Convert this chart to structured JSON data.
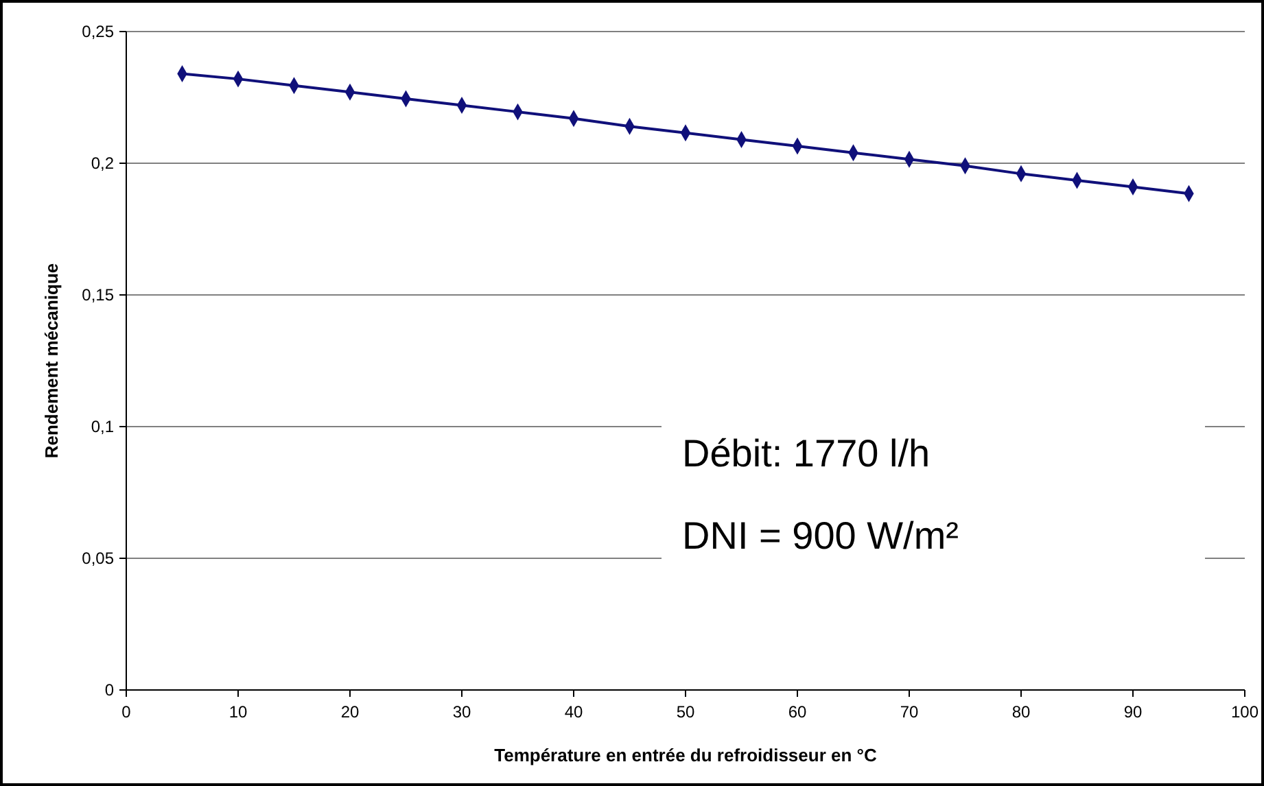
{
  "chart_data": {
    "type": "line",
    "xlabel": "Température en entrée du refroidisseur en °C",
    "ylabel": "Rendement mécanique",
    "x": [
      5,
      10,
      15,
      20,
      25,
      30,
      35,
      40,
      45,
      50,
      55,
      60,
      65,
      70,
      75,
      80,
      85,
      90,
      95
    ],
    "series": [
      {
        "color": "#10107a",
        "values": [
          0.234,
          0.232,
          0.2295,
          0.227,
          0.2245,
          0.222,
          0.2195,
          0.217,
          0.214,
          0.2115,
          0.209,
          0.2065,
          0.204,
          0.2015,
          0.199,
          0.196,
          0.1935,
          0.191,
          0.1885
        ]
      }
    ],
    "xlim": [
      0,
      100
    ],
    "xticks": [
      0,
      10,
      20,
      30,
      40,
      50,
      60,
      70,
      80,
      90,
      100
    ],
    "ylim": [
      0,
      0.25
    ],
    "yticks": [
      {
        "value": 0,
        "label": "0"
      },
      {
        "value": 0.05,
        "label": "0,05"
      },
      {
        "value": 0.1,
        "label": "0,1"
      },
      {
        "value": 0.15,
        "label": "0,15"
      },
      {
        "value": 0.2,
        "label": "0,2"
      },
      {
        "value": 0.25,
        "label": "0,25"
      }
    ],
    "grid": "y",
    "marker": "diamond",
    "line_style": "solid",
    "annotations": [
      "Débit: 1770 l/h",
      "DNI = 900 W/m²"
    ]
  }
}
